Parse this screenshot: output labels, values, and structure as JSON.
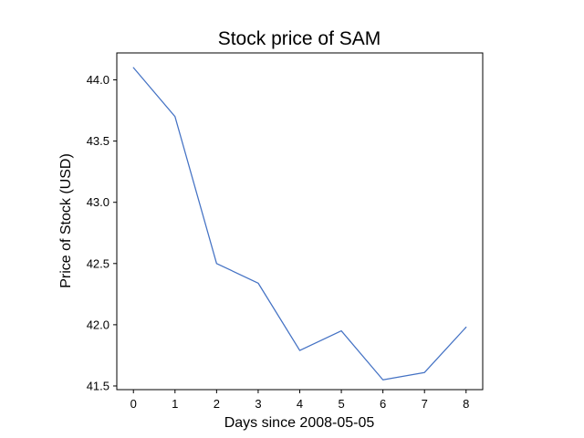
{
  "chart_data": {
    "type": "line",
    "title": "Stock price of SAM",
    "xlabel": "Days since 2008-05-05",
    "ylabel": "Price of Stock (USD)",
    "x": [
      0,
      1,
      2,
      3,
      4,
      5,
      6,
      7,
      8
    ],
    "series": [
      {
        "values": [
          44.1,
          43.7,
          42.5,
          42.34,
          41.79,
          41.95,
          41.55,
          41.61,
          41.98
        ],
        "color": "#4472c4"
      }
    ],
    "xlim": [
      -0.4,
      8.4
    ],
    "ylim": [
      41.47,
      44.22
    ],
    "xticks": [
      "0",
      "1",
      "2",
      "3",
      "4",
      "5",
      "6",
      "7",
      "8"
    ],
    "yticks": [
      "41.5",
      "42.0",
      "42.5",
      "43.0",
      "43.5",
      "44.0"
    ],
    "grid": false,
    "legend": "none"
  }
}
